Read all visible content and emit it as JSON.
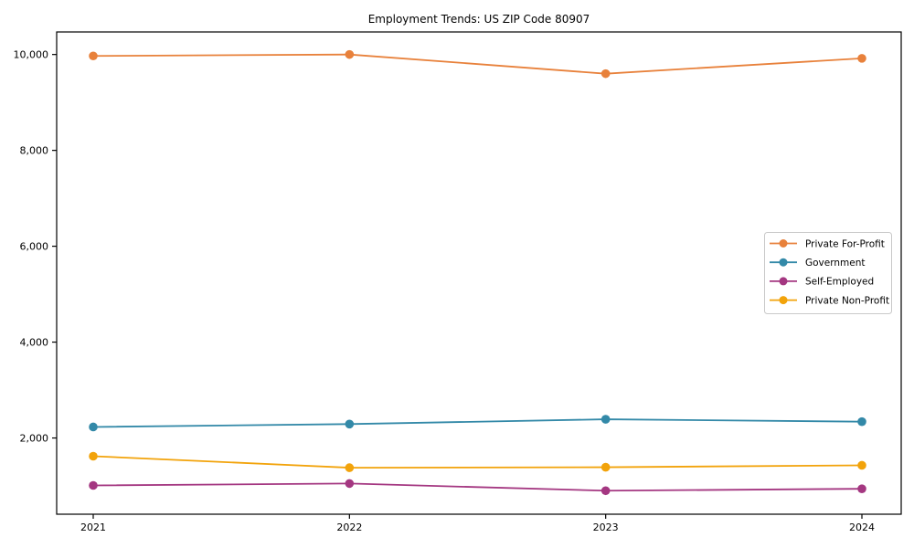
{
  "chart_data": {
    "type": "line",
    "title": "Employment Trends: US ZIP Code 80907",
    "x": [
      "2021",
      "2022",
      "2023",
      "2024"
    ],
    "series": [
      {
        "name": "Private For-Profit",
        "color": "#E8813B",
        "values": [
          9970,
          10000,
          9600,
          9920
        ]
      },
      {
        "name": "Government",
        "color": "#3389A8",
        "values": [
          2230,
          2290,
          2390,
          2340
        ]
      },
      {
        "name": "Self-Employed",
        "color": "#A43781",
        "values": [
          1010,
          1050,
          900,
          940
        ]
      },
      {
        "name": "Private Non-Profit",
        "color": "#F2A30B",
        "values": [
          1620,
          1380,
          1390,
          1430
        ]
      }
    ],
    "xlabel": "",
    "ylabel": "",
    "ylim": [
      410,
      10470
    ],
    "yticks": [
      2000,
      4000,
      6000,
      8000,
      10000
    ],
    "ytick_labels": [
      "2,000",
      "4,000",
      "6,000",
      "8,000",
      "10,000"
    ],
    "grid": false,
    "legend": {
      "position": "middle-right",
      "entries": [
        "Private For-Profit",
        "Government",
        "Self-Employed",
        "Private Non-Profit"
      ]
    },
    "frame_color": "#000000",
    "background_color": "#ffffff",
    "legend_border_color": "#c9c9c9"
  }
}
